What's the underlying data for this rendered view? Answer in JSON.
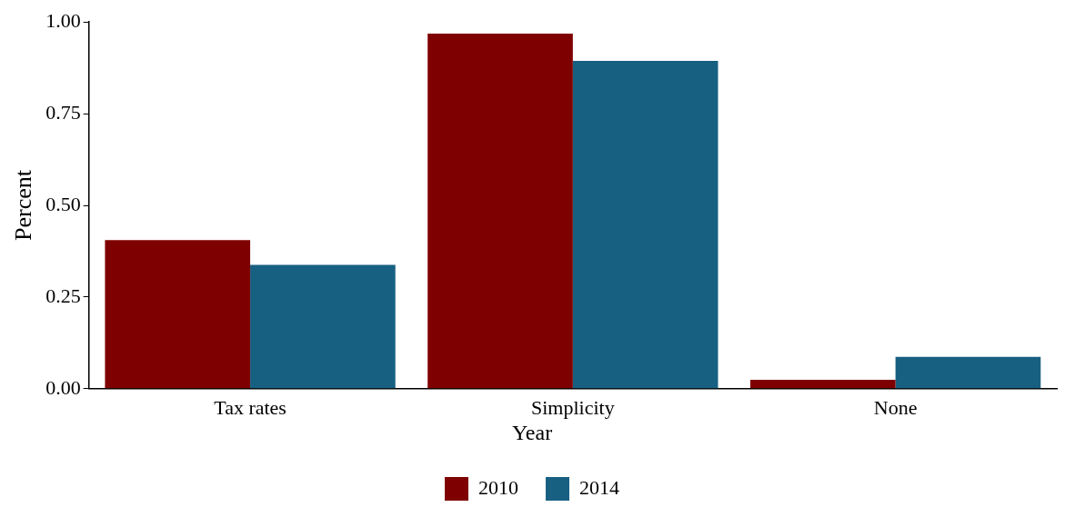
{
  "chart_data": {
    "type": "bar",
    "ylabel": "Percent",
    "legend_title": "Year",
    "legend": "bottom",
    "grid": false,
    "categories": [
      "Tax rates",
      "Simplicity",
      "None"
    ],
    "series": [
      {
        "name": "2010",
        "color": "#7f0000",
        "values": [
          0.405,
          0.968,
          0.024
        ]
      },
      {
        "name": "2014",
        "color": "#186082",
        "values": [
          0.338,
          0.894,
          0.087
        ]
      }
    ],
    "ylim": [
      0,
      1
    ],
    "yticks": [
      {
        "value": 0,
        "label": "0.00"
      },
      {
        "value": 0.25,
        "label": "0.25"
      },
      {
        "value": 0.5,
        "label": "0.50"
      },
      {
        "value": 0.75,
        "label": "0.75"
      },
      {
        "value": 1,
        "label": "1.00"
      }
    ]
  }
}
